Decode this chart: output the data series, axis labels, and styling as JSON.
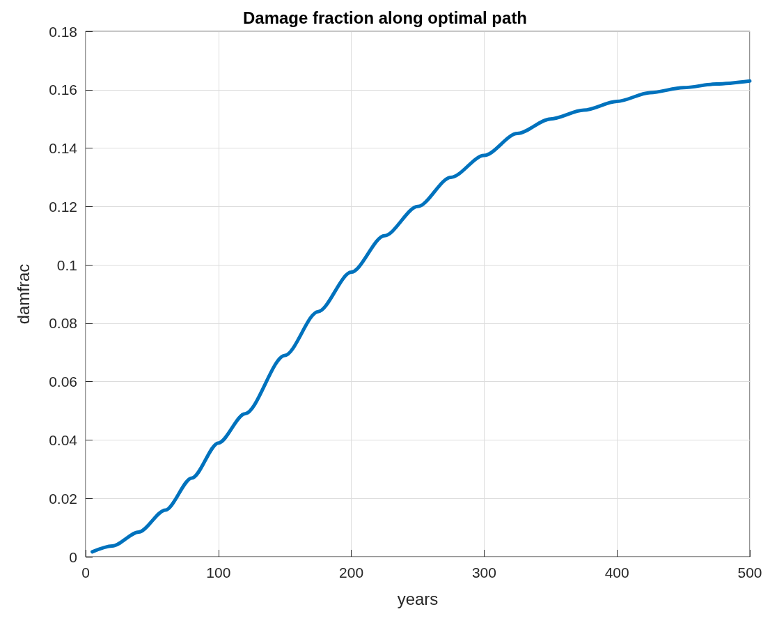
{
  "chart_data": {
    "type": "line",
    "title": "Damage fraction along optimal path",
    "xlabel": "years",
    "ylabel": "damfrac",
    "x": [
      5,
      20,
      40,
      60,
      80,
      100,
      120,
      150,
      175,
      200,
      225,
      250,
      275,
      300,
      325,
      350,
      375,
      400,
      425,
      450,
      475,
      500
    ],
    "series": [
      {
        "color": "#0072bd",
        "values": [
          0.0017,
          0.0037,
          0.0085,
          0.016,
          0.027,
          0.039,
          0.049,
          0.069,
          0.084,
          0.0975,
          0.11,
          0.12,
          0.13,
          0.1375,
          0.145,
          0.15,
          0.153,
          0.156,
          0.159,
          0.1607,
          0.162,
          0.163
        ]
      }
    ],
    "xlim": [
      0,
      500
    ],
    "xticks": [
      0,
      100,
      200,
      300,
      400,
      500
    ],
    "ylim": [
      0,
      0.18
    ],
    "yticks": [
      0,
      0.02,
      0.04,
      0.06,
      0.08,
      0.1,
      0.12,
      0.14,
      0.16,
      0.18
    ],
    "grid": true,
    "marker": "none",
    "line_style": "solid"
  }
}
